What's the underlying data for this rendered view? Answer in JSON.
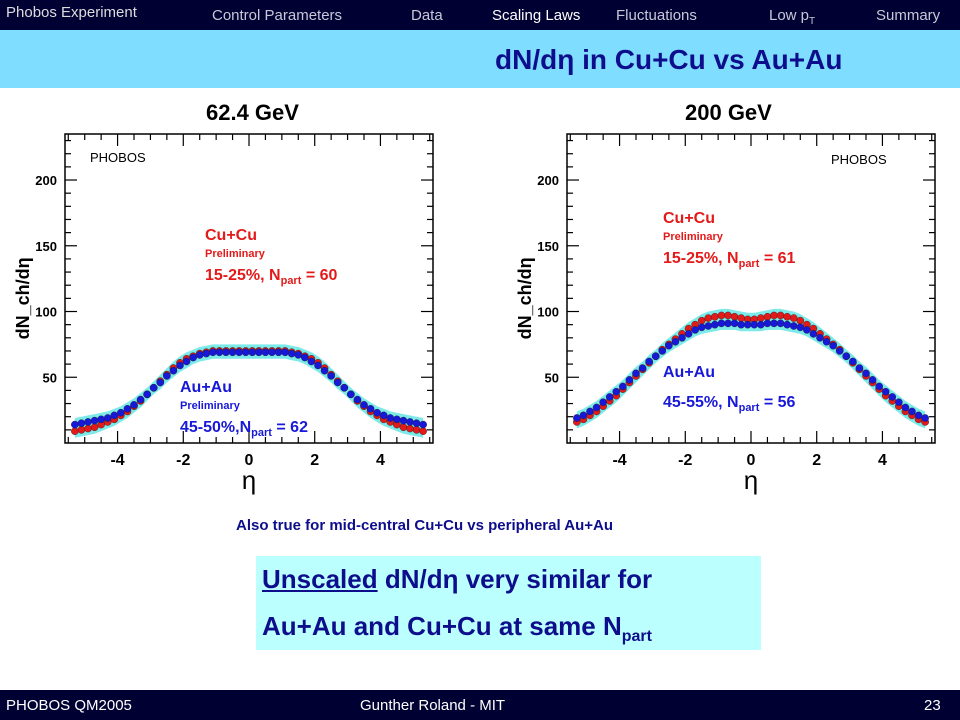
{
  "nav": {
    "brand": "Phobos Experiment",
    "items": [
      {
        "label": "Control Parameters",
        "active": false
      },
      {
        "label": "Data",
        "active": false
      },
      {
        "label": "Scaling Laws",
        "active": true
      },
      {
        "label": "Fluctuations",
        "active": false
      },
      {
        "label": "Low p",
        "sub": "T",
        "active": false
      },
      {
        "label": "Summary",
        "active": false
      }
    ]
  },
  "slide": {
    "title": "dN/dη in Cu+Cu vs Au+Au",
    "note": "Also true for mid-central Cu+Cu vs peripheral Au+Au",
    "box_line1_underlined": "Unscaled",
    "box_line1_rest": " dN/dη very similar for",
    "box_line2": "Au+Au and Cu+Cu at same N",
    "box_line2_sub": "part"
  },
  "footer": {
    "left": "PHOBOS QM2005",
    "center": "Gunther Roland - MIT",
    "page": "23"
  },
  "colors": {
    "cucu": "#e31a1a",
    "auau": "#1818d8",
    "band": "#66e6e6",
    "nav_bg": "#000033",
    "title_bar": "#7fdeff",
    "title_text": "#0e0e8c",
    "box_bg": "#bbffff"
  },
  "chart_data": [
    {
      "type": "scatter",
      "title": "62.4 GeV",
      "watermark": "PHOBOS",
      "xlabel": "η",
      "ylabel": "dN_ch/dη",
      "xlim": [
        -5.6,
        5.6
      ],
      "ylim": [
        0,
        235
      ],
      "xticks": [
        -4,
        -2,
        0,
        2,
        4
      ],
      "yticks": [
        50,
        100,
        150,
        200
      ],
      "annotations": {
        "cucu_name": "Cu+Cu",
        "cucu_prelim": "Preliminary",
        "cucu_cent": "15-25%, N",
        "cucu_sub": "part",
        "cucu_val": " = 60",
        "auau_name": "Au+Au",
        "auau_prelim": "Preliminary",
        "auau_cent": "45-50%,N",
        "auau_sub": "part",
        "auau_val": " = 62"
      },
      "eta": [
        -5.3,
        -5.1,
        -4.9,
        -4.7,
        -4.5,
        -4.3,
        -4.1,
        -3.9,
        -3.7,
        -3.5,
        -3.3,
        -3.1,
        -2.9,
        -2.7,
        -2.5,
        -2.3,
        -2.1,
        -1.9,
        -1.7,
        -1.5,
        -1.3,
        -1.1,
        -0.9,
        -0.7,
        -0.5,
        -0.3,
        -0.1,
        0.1,
        0.3,
        0.5,
        0.7,
        0.9,
        1.1,
        1.3,
        1.5,
        1.7,
        1.9,
        2.1,
        2.3,
        2.5,
        2.7,
        2.9,
        3.1,
        3.3,
        3.5,
        3.7,
        3.9,
        4.1,
        4.3,
        4.5,
        4.7,
        4.9,
        5.1,
        5.3
      ],
      "series": [
        {
          "name": "Cu+Cu",
          "color_key": "cucu",
          "values": [
            9,
            10,
            11,
            12,
            14,
            16,
            18,
            21,
            24,
            28,
            32,
            37,
            42,
            47,
            52,
            57,
            61,
            64,
            66,
            68,
            69,
            70,
            70,
            70,
            70,
            70,
            70,
            70,
            70,
            70,
            70,
            70,
            70,
            69,
            68,
            66,
            64,
            61,
            57,
            52,
            47,
            42,
            37,
            32,
            28,
            24,
            21,
            18,
            16,
            14,
            12,
            11,
            10,
            9
          ]
        },
        {
          "name": "Au+Au",
          "color_key": "auau",
          "values": [
            14,
            15,
            16,
            17,
            18,
            19,
            21,
            23,
            26,
            29,
            33,
            37,
            42,
            46,
            51,
            55,
            59,
            62,
            65,
            67,
            68,
            69,
            69,
            69,
            69,
            69,
            69,
            69,
            69,
            69,
            69,
            69,
            69,
            68,
            67,
            65,
            62,
            59,
            55,
            51,
            46,
            42,
            37,
            33,
            29,
            26,
            23,
            21,
            19,
            18,
            17,
            16,
            15,
            14
          ]
        }
      ]
    },
    {
      "type": "scatter",
      "title": "200 GeV",
      "watermark": "PHOBOS",
      "xlabel": "η",
      "ylabel": "dN_ch/dη",
      "xlim": [
        -5.6,
        5.6
      ],
      "ylim": [
        0,
        235
      ],
      "xticks": [
        -4,
        -2,
        0,
        2,
        4
      ],
      "yticks": [
        50,
        100,
        150,
        200
      ],
      "annotations": {
        "cucu_name": "Cu+Cu",
        "cucu_prelim": "Preliminary",
        "cucu_cent": "15-25%, N",
        "cucu_sub": "part",
        "cucu_val": " = 61",
        "auau_name": "Au+Au",
        "auau_prelim": "",
        "auau_cent": "45-55%, N",
        "auau_sub": "part",
        "auau_val": " = 56"
      },
      "eta": [
        -5.3,
        -5.1,
        -4.9,
        -4.7,
        -4.5,
        -4.3,
        -4.1,
        -3.9,
        -3.7,
        -3.5,
        -3.3,
        -3.1,
        -2.9,
        -2.7,
        -2.5,
        -2.3,
        -2.1,
        -1.9,
        -1.7,
        -1.5,
        -1.3,
        -1.1,
        -0.9,
        -0.7,
        -0.5,
        -0.3,
        -0.1,
        0.1,
        0.3,
        0.5,
        0.7,
        0.9,
        1.1,
        1.3,
        1.5,
        1.7,
        1.9,
        2.1,
        2.3,
        2.5,
        2.7,
        2.9,
        3.1,
        3.3,
        3.5,
        3.7,
        3.9,
        4.1,
        4.3,
        4.5,
        4.7,
        4.9,
        5.1,
        5.3
      ],
      "series": [
        {
          "name": "Cu+Cu",
          "color_key": "cucu",
          "values": [
            16,
            18,
            21,
            24,
            28,
            32,
            36,
            41,
            46,
            51,
            56,
            61,
            66,
            71,
            75,
            79,
            83,
            87,
            90,
            93,
            95,
            96,
            97,
            97,
            96,
            95,
            94,
            94,
            95,
            96,
            97,
            97,
            96,
            95,
            93,
            90,
            87,
            83,
            79,
            75,
            71,
            66,
            61,
            56,
            51,
            46,
            41,
            36,
            32,
            28,
            24,
            21,
            18,
            16
          ]
        },
        {
          "name": "Au+Au",
          "color_key": "auau",
          "values": [
            19,
            21,
            24,
            27,
            31,
            35,
            39,
            43,
            48,
            53,
            57,
            62,
            66,
            70,
            74,
            77,
            80,
            83,
            86,
            88,
            89,
            90,
            91,
            91,
            91,
            90,
            90,
            90,
            90,
            91,
            91,
            91,
            90,
            89,
            88,
            86,
            83,
            80,
            77,
            74,
            70,
            66,
            62,
            57,
            53,
            48,
            43,
            39,
            35,
            31,
            27,
            24,
            21,
            19
          ]
        }
      ]
    }
  ]
}
